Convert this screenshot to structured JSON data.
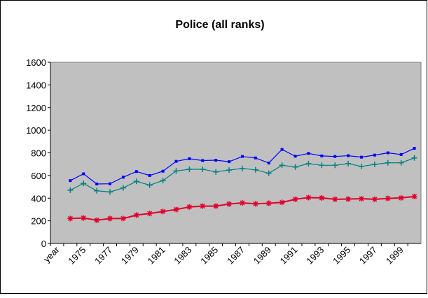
{
  "chart_data": {
    "type": "line",
    "title": "Police (all ranks)",
    "categories": [
      "year",
      null,
      "1975",
      null,
      "1977",
      null,
      "1979",
      null,
      "1981",
      null,
      "1983",
      null,
      "1985",
      null,
      "1987",
      null,
      "1989",
      null,
      "1991",
      null,
      "1993",
      null,
      "1995",
      null,
      "1997",
      null,
      "1999",
      null
    ],
    "series": [
      {
        "color": "#0000ff",
        "marker": "square",
        "values": [
          null,
          555,
          615,
          525,
          527,
          585,
          635,
          600,
          638,
          725,
          748,
          732,
          735,
          722,
          768,
          755,
          710,
          830,
          770,
          795,
          773,
          768,
          775,
          762,
          780,
          800,
          785,
          840
        ]
      },
      {
        "color": "#008080",
        "marker": "plus",
        "values": [
          null,
          470,
          530,
          465,
          455,
          490,
          548,
          515,
          555,
          640,
          655,
          655,
          632,
          648,
          662,
          650,
          620,
          690,
          675,
          705,
          690,
          690,
          705,
          680,
          698,
          712,
          712,
          755
        ]
      },
      {
        "color": "#e0002a",
        "marker": "star",
        "values": [
          null,
          220,
          225,
          205,
          220,
          220,
          250,
          265,
          282,
          300,
          322,
          330,
          330,
          348,
          358,
          350,
          355,
          362,
          390,
          405,
          402,
          390,
          392,
          395,
          390,
          398,
          402,
          415
        ]
      }
    ],
    "ylim": [
      0,
      1600
    ],
    "yticks": [
      0,
      200,
      400,
      600,
      800,
      1000,
      1200,
      1400,
      1600
    ],
    "grid": false
  }
}
